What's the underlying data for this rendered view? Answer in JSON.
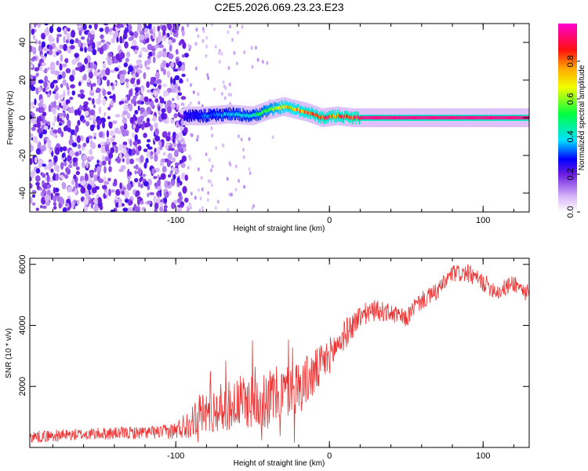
{
  "title": "C2E5.2026.069.23.23.E23",
  "chart_data": [
    {
      "type": "heatmap",
      "name": "spectrogram",
      "xlabel": "Height of straight line (km)",
      "ylabel": "Frequency (Hz)",
      "xlim": [
        -195,
        130
      ],
      "ylim": [
        -50,
        50
      ],
      "xticks": [
        -100,
        0,
        100
      ],
      "xtick_labels": [
        "-100",
        "0",
        "100"
      ],
      "yticks": [
        -40,
        -20,
        0,
        20,
        40
      ],
      "ytick_labels": [
        "-40",
        "-20",
        "0",
        "20",
        "40"
      ],
      "colorbar": {
        "label": "Normalized spectral amplitude",
        "range": [
          0,
          1
        ],
        "ticks": [
          0,
          0.2,
          0.4,
          0.6,
          0.8
        ],
        "tick_labels": [
          "0.0",
          "0.2",
          "0.4",
          "0.6",
          "0.8"
        ]
      },
      "features": {
        "noise_region_x": [
          -195,
          -93
        ],
        "noise_level": 0.2,
        "signal_ridge": [
          {
            "x": -95,
            "freq": 1,
            "amp": 0.25
          },
          {
            "x": -80,
            "freq": 1,
            "amp": 0.35
          },
          {
            "x": -65,
            "freq": 2,
            "amp": 0.4
          },
          {
            "x": -50,
            "freq": 1,
            "amp": 0.45
          },
          {
            "x": -40,
            "freq": 4,
            "amp": 0.6
          },
          {
            "x": -30,
            "freq": 6,
            "amp": 0.75
          },
          {
            "x": -15,
            "freq": 3,
            "amp": 0.85
          },
          {
            "x": -5,
            "freq": 0,
            "amp": 0.9
          },
          {
            "x": 5,
            "freq": 1,
            "amp": 0.9
          },
          {
            "x": 15,
            "freq": 0,
            "amp": 0.95
          },
          {
            "x": 130,
            "freq": 0,
            "amp": 0.95
          }
        ]
      }
    },
    {
      "type": "line",
      "name": "snr",
      "xlabel": "Height of straight line (km)",
      "ylabel": "SNR (10 * v/v)",
      "xlim": [
        -195,
        130
      ],
      "ylim": [
        0,
        6200
      ],
      "xticks": [
        -100,
        0,
        100
      ],
      "xtick_labels": [
        "-100",
        "0",
        "100"
      ],
      "yticks": [
        2000,
        4000,
        6000
      ],
      "ytick_labels": [
        "2000",
        "4000",
        "6000"
      ],
      "color": "#ee3333",
      "x": [
        -195,
        -150,
        -110,
        -100,
        -92,
        -85,
        -70,
        -55,
        -40,
        -30,
        -20,
        -10,
        0,
        10,
        20,
        30,
        40,
        50,
        55,
        60,
        70,
        80,
        90,
        100,
        110,
        120,
        130
      ],
      "y": [
        350,
        450,
        500,
        550,
        800,
        1100,
        1300,
        1500,
        1600,
        1800,
        2000,
        2400,
        3000,
        3700,
        4300,
        4500,
        4400,
        4200,
        4600,
        4800,
        5100,
        5700,
        5700,
        5400,
        5100,
        5400,
        5000
      ],
      "noise_amplitude": [
        200,
        200,
        220,
        300,
        500,
        700,
        800,
        900,
        1000,
        900,
        900,
        800,
        600,
        500,
        400,
        350,
        300,
        300,
        300,
        300,
        300,
        300,
        300,
        300,
        300,
        300,
        300
      ]
    }
  ]
}
